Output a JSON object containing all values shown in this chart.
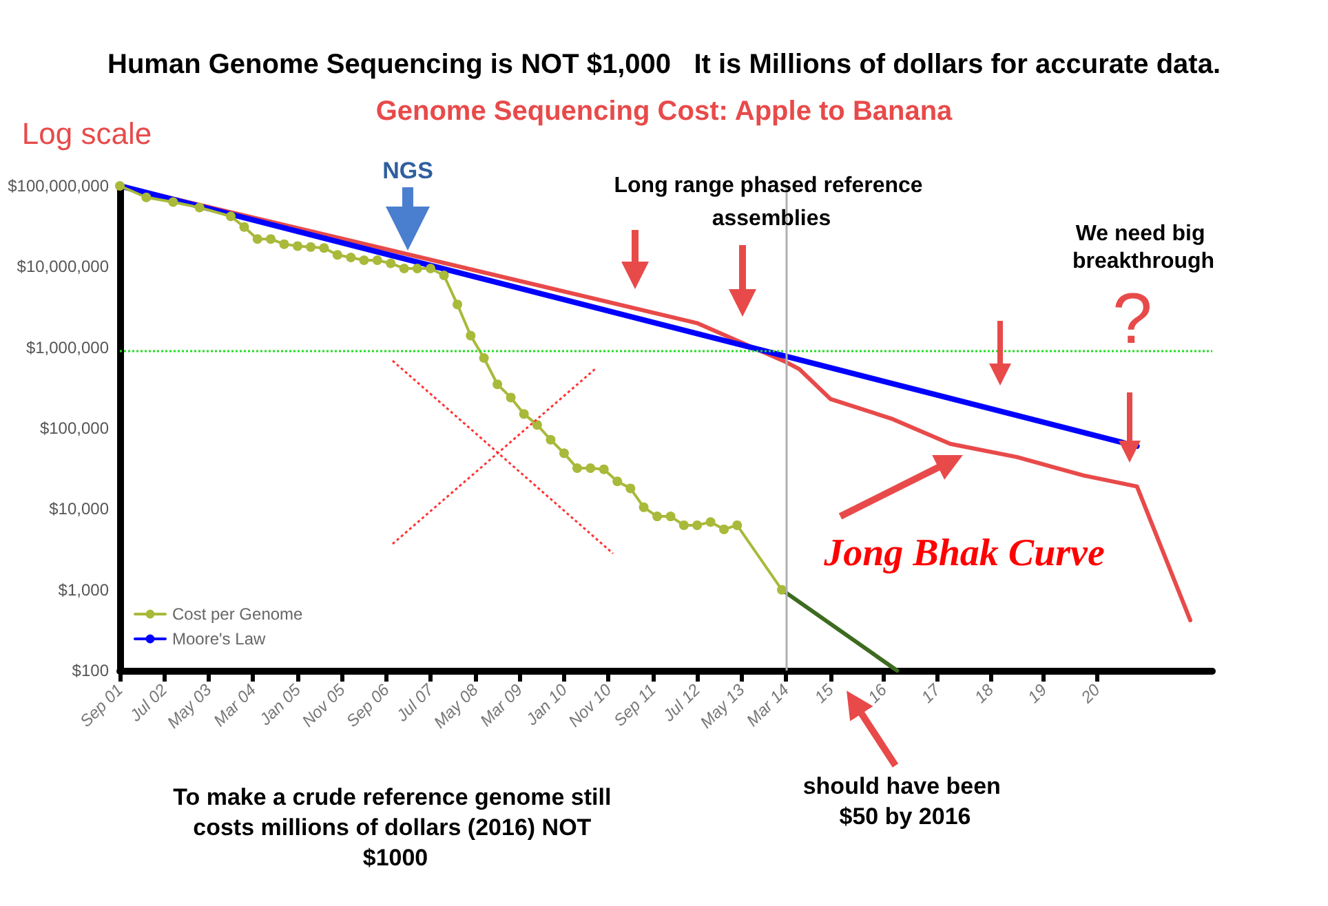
{
  "chart_data": {
    "type": "line",
    "title": "Human Genome Sequencing is NOT $1,000   It is Millions of dollars for accurate data.",
    "subtitle": "Genome Sequencing Cost: Apple to Banana",
    "xlim": [
      "2001-09",
      "2022-03"
    ],
    "xticks": [
      {
        "value": "2001-09",
        "label": "Sep 01"
      },
      {
        "value": "2002-07",
        "label": "Jul 02"
      },
      {
        "value": "2003-05",
        "label": "May 03"
      },
      {
        "value": "2004-03",
        "label": "Mar 04"
      },
      {
        "value": "2005-01",
        "label": "Jan 05"
      },
      {
        "value": "2005-11",
        "label": "Nov 05"
      },
      {
        "value": "2006-09",
        "label": "Sep 06"
      },
      {
        "value": "2007-07",
        "label": "Jul 07"
      },
      {
        "value": "2008-05",
        "label": "May 08"
      },
      {
        "value": "2009-03",
        "label": "Mar 09"
      },
      {
        "value": "2010-01",
        "label": "Jan 10"
      },
      {
        "value": "2010-11",
        "label": "Nov 10"
      },
      {
        "value": "2011-09",
        "label": "Sep 11"
      },
      {
        "value": "2012-07",
        "label": "Jul 12"
      },
      {
        "value": "2013-05",
        "label": "May 13"
      },
      {
        "value": "2014-03",
        "label": "Mar 14"
      },
      {
        "value": "2015",
        "label": "15"
      },
      {
        "value": "2016",
        "label": "16"
      },
      {
        "value": "2017",
        "label": "17"
      },
      {
        "value": "2018",
        "label": "18"
      },
      {
        "value": "2019",
        "label": "19"
      },
      {
        "value": "2020",
        "label": "20"
      }
    ],
    "ylim": [
      100,
      100000000
    ],
    "log": true,
    "yticks": [
      {
        "value": 100,
        "label": "$100"
      },
      {
        "value": 1000,
        "label": "$1,000"
      },
      {
        "value": 10000,
        "label": "$10,000"
      },
      {
        "value": 100000,
        "label": "$100,000"
      },
      {
        "value": 1000000,
        "label": "$1,000,000"
      },
      {
        "value": 10000000,
        "label": "$10,000,000"
      },
      {
        "value": 100000000,
        "label": "$100,000,000"
      }
    ],
    "grid": false,
    "legend": "bottom left",
    "marker": "circle",
    "series": [
      {
        "name": null,
        "color": "#e84a4a",
        "marker": "none",
        "x": [
          "2001-09",
          "2012-07",
          "2014-03",
          "2014-06",
          "2015-01",
          "2016-03",
          "2017-04",
          "2018-07",
          "2019-10",
          "2020-10",
          "2021-10"
        ],
        "values": [
          100000000,
          2000000,
          660000,
          540000,
          230000,
          130000,
          64000,
          44000,
          26000,
          19000,
          420
        ]
      },
      {
        "name": "Moore's Law",
        "color": "#0000ff",
        "marker": "none",
        "x": [
          "2001-09",
          "2020-10"
        ],
        "values": [
          100000000,
          60000
        ]
      },
      {
        "name": "Cost per Genome",
        "color": "#a9b93a",
        "x": [
          "2001-09",
          "2002-03",
          "2002-09",
          "2003-03",
          "2003-10",
          "2004-01",
          "2004-04",
          "2004-07",
          "2004-10",
          "2005-01",
          "2005-04",
          "2005-07",
          "2005-10",
          "2006-01",
          "2006-04",
          "2006-07",
          "2006-10",
          "2007-01",
          "2007-04",
          "2007-07",
          "2007-10",
          "2008-01",
          "2008-04",
          "2008-07",
          "2008-10",
          "2009-01",
          "2009-04",
          "2009-07",
          "2009-10",
          "2010-01",
          "2010-04",
          "2010-07",
          "2010-10",
          "2011-01",
          "2011-04",
          "2011-07",
          "2011-10",
          "2012-01",
          "2012-04",
          "2012-07",
          "2012-10",
          "2013-01",
          "2013-04",
          "2014-02"
        ],
        "values": [
          100000000,
          72000000,
          63000000,
          54000000,
          42000000,
          31000000,
          22000000,
          22000000,
          19000000,
          18000000,
          17500000,
          17000000,
          14000000,
          13000000,
          12000000,
          12000000,
          11000000,
          9500000,
          9500000,
          9500000,
          7800000,
          3400000,
          1400000,
          740000,
          350000,
          240000,
          150000,
          110000,
          72000,
          49000,
          32000,
          32000,
          31000,
          22000,
          18000,
          10500,
          8100,
          8100,
          6300,
          6300,
          6900,
          5600,
          6300,
          1000
        ]
      },
      {
        "name": null,
        "color": "#3d6b1f",
        "marker": "none",
        "x": [
          "2014-02",
          "2016-04"
        ],
        "values": [
          1000,
          100
        ]
      }
    ],
    "ref_lines": [
      {
        "axis": "y",
        "value": 900000,
        "label": null,
        "color": "#22dd22",
        "line_style": "dotted"
      },
      {
        "axis": "x",
        "value": "2014-03",
        "label": null,
        "color": "#b0b0b0",
        "line_style": "solid"
      }
    ],
    "annotations": [
      "Log scale",
      "NGS",
      "Long range phased reference assemblies",
      "We need big breakthrough",
      "?",
      "Jong Bhak Curve",
      "To make a crude reference genome still costs millions of dollars (2016) NOT $1000",
      "should have been $50 by 2016"
    ]
  }
}
